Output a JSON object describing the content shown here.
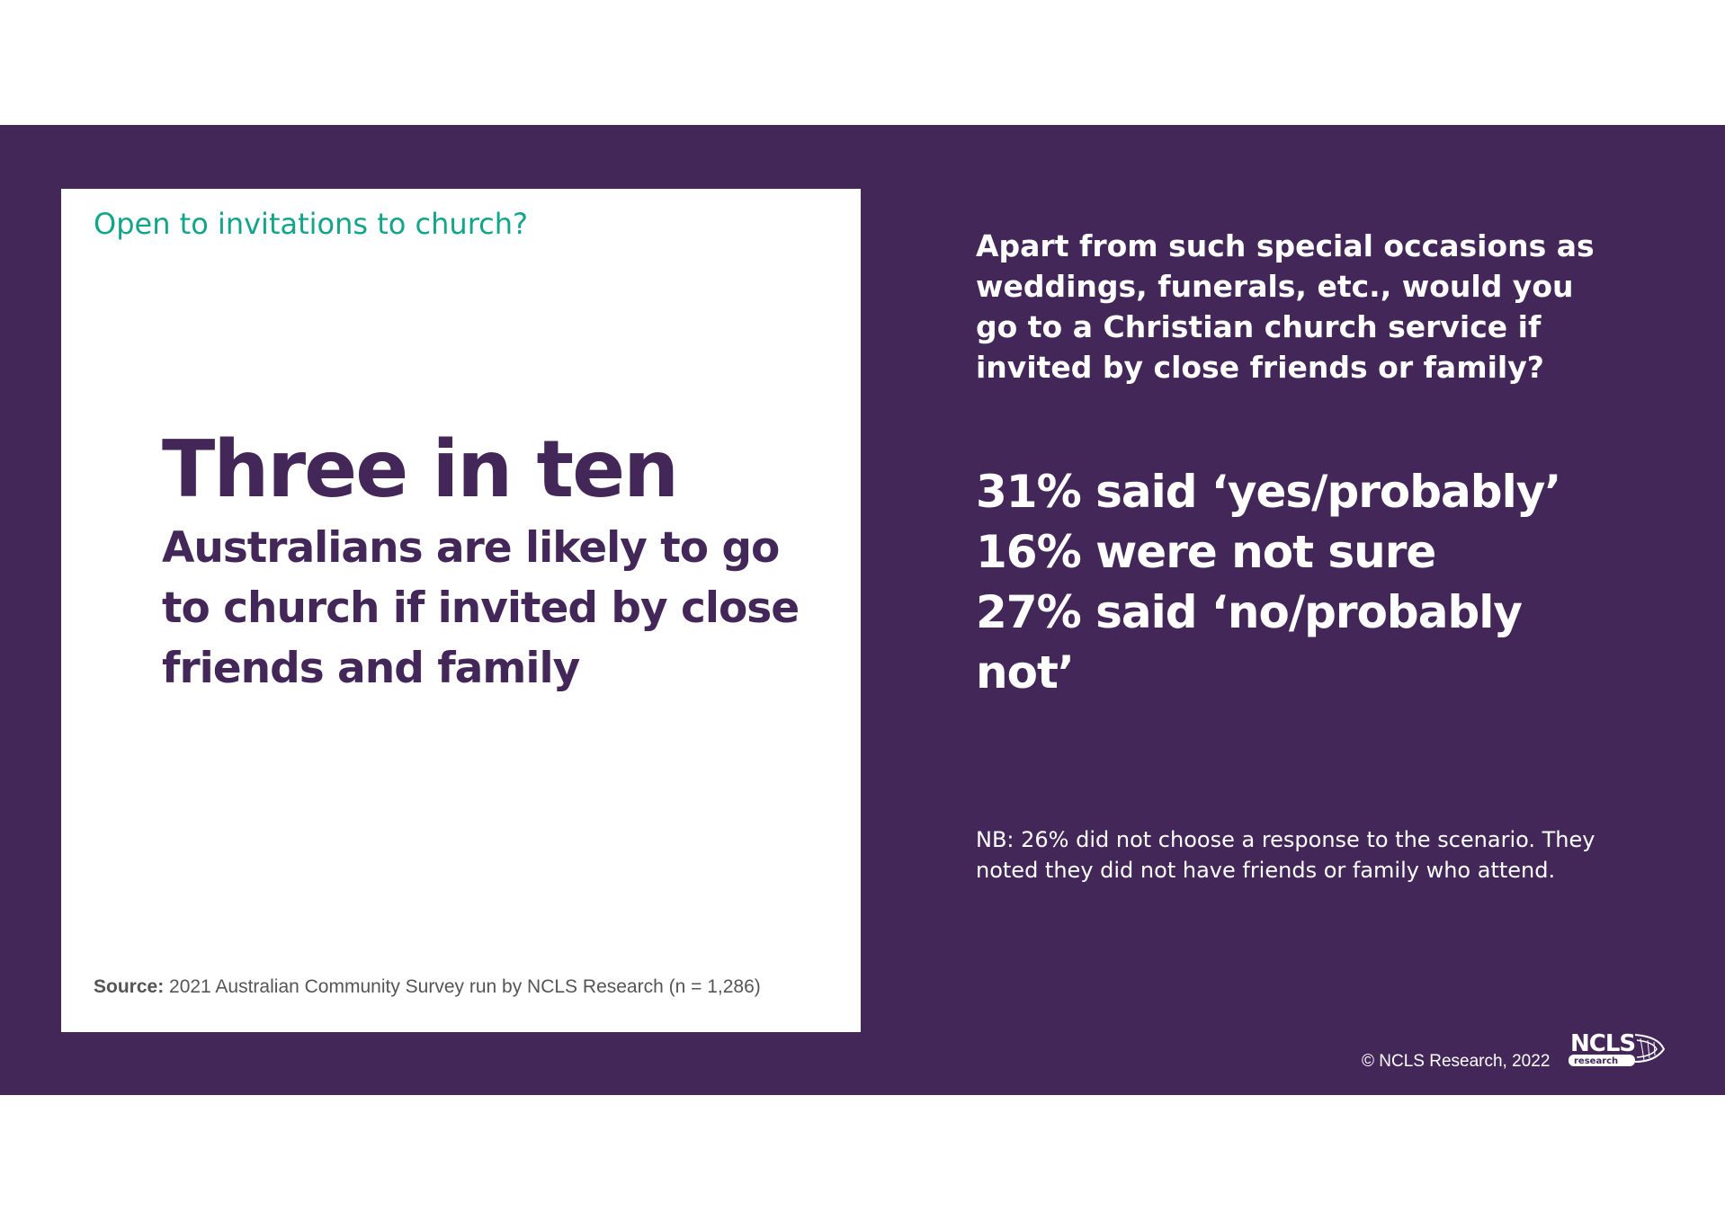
{
  "card": {
    "heading": "Open to invitations to church?",
    "headline": "Three in ten",
    "subline": "Australians are likely to go to church if invited by close friends and family",
    "source_label": "Source:",
    "source_text": " 2021 Australian Community Survey run by NCLS Research (n = 1,286)"
  },
  "panel": {
    "question": "Apart from such special occasions as weddings, funerals, etc., would you go to a Christian church service if invited by close friends or family?",
    "stats": [
      "31% said ‘yes/probably’",
      "16% were not sure",
      "27% said ‘no/probably not’"
    ],
    "note": "NB: 26% did not choose a response to the scenario. They noted they did not have friends or family who attend."
  },
  "footer": {
    "copyright": "© NCLS Research, 2022",
    "logo_text": "NCLS",
    "logo_subtext": "research"
  },
  "colors": {
    "background": "#442759",
    "accent_green": "#12a58a",
    "text_purple": "#442759"
  }
}
